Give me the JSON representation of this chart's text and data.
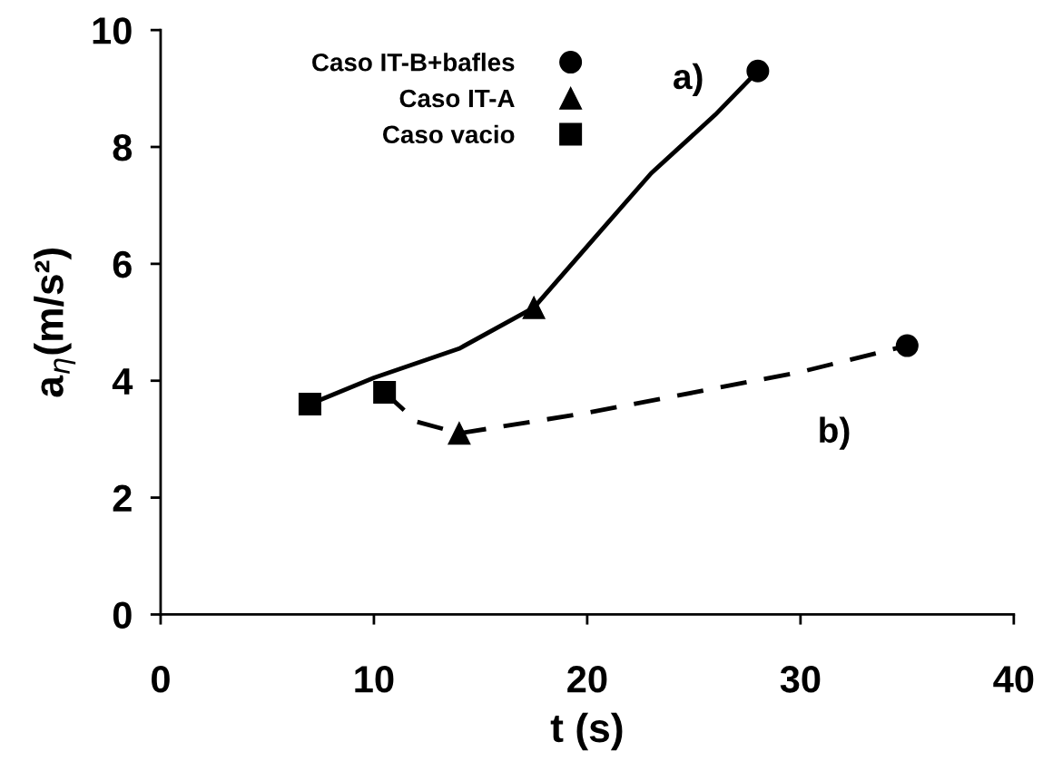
{
  "chart_data": {
    "type": "line",
    "xlabel": "t (s)",
    "ylabel": "a$_{η}$(m/s²)",
    "xlim": [
      0,
      40
    ],
    "xticks": [
      0,
      10,
      20,
      30,
      40
    ],
    "ylim": [
      0,
      10
    ],
    "yticks": [
      0,
      2,
      4,
      6,
      8,
      10
    ],
    "grid": false,
    "legend": "top left",
    "series": [
      {
        "color": "#000000",
        "line_style": "solid",
        "marker": "none",
        "x": [
          7,
          10,
          14,
          17.5,
          20,
          23,
          26,
          28
        ],
        "values": [
          3.6,
          4.05,
          4.55,
          5.25,
          6.3,
          7.55,
          8.55,
          9.3
        ]
      },
      {
        "color": "#000000",
        "line_style": "dashed",
        "marker": "none",
        "x": [
          10.5,
          12,
          14,
          20,
          25,
          30,
          35
        ],
        "values": [
          3.8,
          3.3,
          3.1,
          3.45,
          3.8,
          4.15,
          4.6
        ]
      },
      {
        "type": "scatter",
        "name": "Caso IT-B+bafles",
        "color": "#000000",
        "marker": "circle",
        "x": [
          28,
          35
        ],
        "values": [
          9.3,
          4.6
        ]
      },
      {
        "type": "scatter",
        "name": "Caso IT-A",
        "color": "#000000",
        "marker": "triangle",
        "x": [
          17.5,
          14
        ],
        "values": [
          5.25,
          3.1
        ]
      },
      {
        "type": "scatter",
        "name": "Caso vacio",
        "color": "#000000",
        "marker": "square",
        "x": [
          7,
          10.5
        ],
        "values": [
          3.6,
          3.8
        ]
      }
    ],
    "annotations": [
      "a)",
      "b)"
    ]
  }
}
